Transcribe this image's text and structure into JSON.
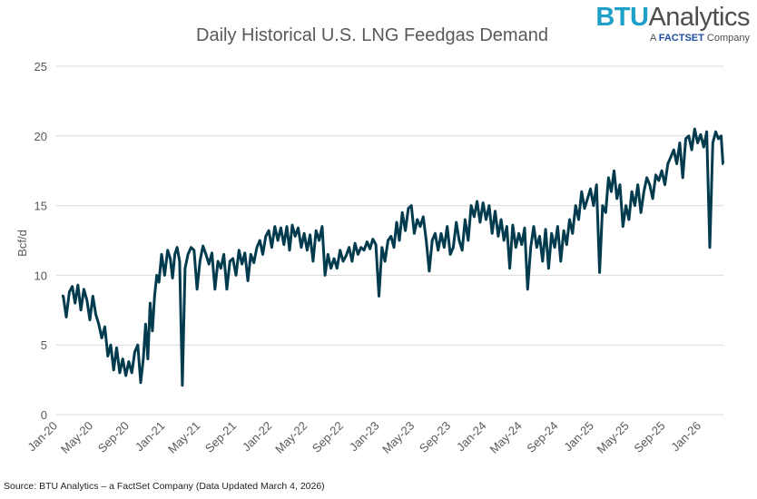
{
  "logo": {
    "brand": "BTU",
    "name": "Analytics",
    "tagline_prefix": "A",
    "tagline_brand": "FACTSET",
    "tagline_suffix": "Company"
  },
  "source": "Source: BTU Analytics – a FactSet Company (Data Updated March 4, 2026)",
  "chart_data": {
    "type": "line",
    "title": "Daily Historical U.S. LNG Feedgas Demand",
    "xlabel": "",
    "ylabel": "Bcf/d",
    "ylim": [
      0,
      25
    ],
    "yticks": [
      "0",
      "5",
      "10",
      "15",
      "20",
      "25"
    ],
    "xlim": [
      "2020-01-01",
      "2026-03-04"
    ],
    "xticks": [
      "Jan-20",
      "May-20",
      "Sep-20",
      "Jan-21",
      "May-21",
      "Sep-21",
      "Jan-22",
      "May-22",
      "Sep-22",
      "Jan-23",
      "May-23",
      "Sep-23",
      "Jan-24",
      "May-24",
      "Sep-24",
      "Jan-25",
      "May-25",
      "Sep-25",
      "Jan-26"
    ],
    "grid": "horizontal",
    "line_color": "#023a4e",
    "series": [
      {
        "values_by_month": {
          "2020-01": [
            8.5,
            7.0,
            8.8
          ],
          "2020-02": [
            9.2,
            8.0,
            9.3
          ],
          "2020-03": [
            7.5,
            9.0,
            8.2
          ],
          "2020-04": [
            6.8,
            8.5,
            7.2
          ],
          "2020-05": [
            6.5,
            5.5,
            6.3
          ],
          "2020-06": [
            4.2,
            5.0,
            3.2
          ],
          "2020-07": [
            4.8,
            3.0,
            4.0
          ],
          "2020-08": [
            2.8,
            3.8,
            3.0
          ],
          "2020-09": [
            4.5,
            5.0,
            2.3
          ],
          "2020-10": [
            4.0,
            6.5,
            4.0,
            8.0
          ],
          "2020-11": [
            6.0,
            8.5,
            10.0,
            9.5
          ],
          "2020-12": [
            11.5,
            10.0,
            11.8
          ],
          "2021-01": [
            11.2,
            9.8,
            11.5,
            12.0
          ],
          "2021-02": [
            11.0,
            2.1,
            10.5
          ],
          "2021-03": [
            11.5,
            12.0,
            11.8
          ],
          "2021-04": [
            9.0,
            11.0,
            12.1
          ],
          "2021-05": [
            11.5,
            10.8,
            11.6
          ],
          "2021-06": [
            9.0,
            11.0,
            10.5
          ],
          "2021-07": [
            11.5,
            9.0,
            11.0
          ],
          "2021-08": [
            11.2,
            10.0,
            11.8
          ],
          "2021-09": [
            10.8,
            11.6,
            9.6
          ],
          "2021-10": [
            11.5,
            10.9,
            12.0
          ],
          "2021-11": [
            12.5,
            11.5,
            12.8
          ],
          "2021-12": [
            13.2,
            12.0,
            13.5
          ],
          "2022-01": [
            12.5,
            13.4,
            12.2
          ],
          "2022-02": [
            13.5,
            11.8,
            13.6
          ],
          "2022-03": [
            12.8,
            13.4,
            12.0
          ],
          "2022-04": [
            13.0,
            11.8,
            12.9
          ],
          "2022-05": [
            11.0,
            13.2,
            12.5
          ],
          "2022-06": [
            13.5,
            10.0,
            11.5
          ],
          "2022-07": [
            10.5,
            11.2,
            10.5
          ],
          "2022-08": [
            11.8,
            11.0,
            11.4
          ],
          "2022-09": [
            12.0,
            11.0,
            12.3
          ],
          "2022-10": [
            11.5,
            12.0,
            11.8
          ],
          "2022-11": [
            12.4,
            11.9,
            12.6
          ],
          "2022-12": [
            12.2,
            8.5,
            12.0
          ],
          "2023-01": [
            11.0,
            12.5,
            12.8
          ],
          "2023-02": [
            12.0,
            13.8,
            12.5
          ],
          "2023-03": [
            14.5,
            13.2,
            14.8
          ],
          "2023-04": [
            15.0,
            13.0,
            14.0
          ],
          "2023-05": [
            13.5,
            14.2,
            12.5
          ],
          "2023-06": [
            10.3,
            12.5,
            13.0
          ],
          "2023-07": [
            11.8,
            13.0,
            12.0
          ],
          "2023-08": [
            13.5,
            11.5,
            12.0
          ],
          "2023-09": [
            13.8,
            12.5,
            11.8
          ],
          "2023-10": [
            14.0,
            12.5,
            15.0
          ],
          "2023-11": [
            14.2,
            15.3,
            13.8
          ],
          "2023-12": [
            15.2,
            14.0,
            15.0
          ],
          "2024-01": [
            13.0,
            14.6,
            12.8
          ],
          "2024-02": [
            14.0,
            12.5,
            13.5
          ],
          "2024-03": [
            10.5,
            13.6,
            12.0
          ],
          "2024-04": [
            13.0,
            12.2,
            13.4
          ],
          "2024-05": [
            9.0,
            12.0,
            13.5
          ],
          "2024-06": [
            12.0,
            12.8,
            11.0
          ],
          "2024-07": [
            13.3,
            10.5,
            13.0
          ],
          "2024-08": [
            12.0,
            13.5,
            11.0
          ],
          "2024-09": [
            13.2,
            12.2,
            14.0
          ],
          "2024-10": [
            13.0,
            15.0,
            14.0
          ],
          "2024-11": [
            16.0,
            14.8,
            15.5
          ],
          "2024-12": [
            16.2,
            15.0,
            16.5
          ],
          "2025-01": [
            10.2,
            15.0,
            14.5
          ],
          "2025-02": [
            17.0,
            16.0,
            17.5
          ],
          "2025-03": [
            15.5,
            16.5,
            13.5
          ],
          "2025-04": [
            15.0,
            14.0,
            16.0
          ],
          "2025-05": [
            15.0,
            16.5,
            14.5
          ],
          "2025-06": [
            16.0,
            17.0,
            16.5
          ],
          "2025-07": [
            15.5,
            17.2,
            16.8
          ],
          "2025-08": [
            17.5,
            16.5,
            18.0
          ],
          "2025-09": [
            18.5,
            19.0,
            18.0
          ],
          "2025-10": [
            19.5,
            17.0,
            19.8
          ],
          "2025-11": [
            20.0,
            19.0,
            20.5
          ],
          "2025-12": [
            19.5,
            20.1,
            19.2
          ],
          "2026-01": [
            20.3,
            12.0,
            19.5
          ],
          "2026-02": [
            20.3,
            19.8,
            20.0
          ],
          "2026-03": [
            18.0
          ]
        }
      }
    ]
  }
}
